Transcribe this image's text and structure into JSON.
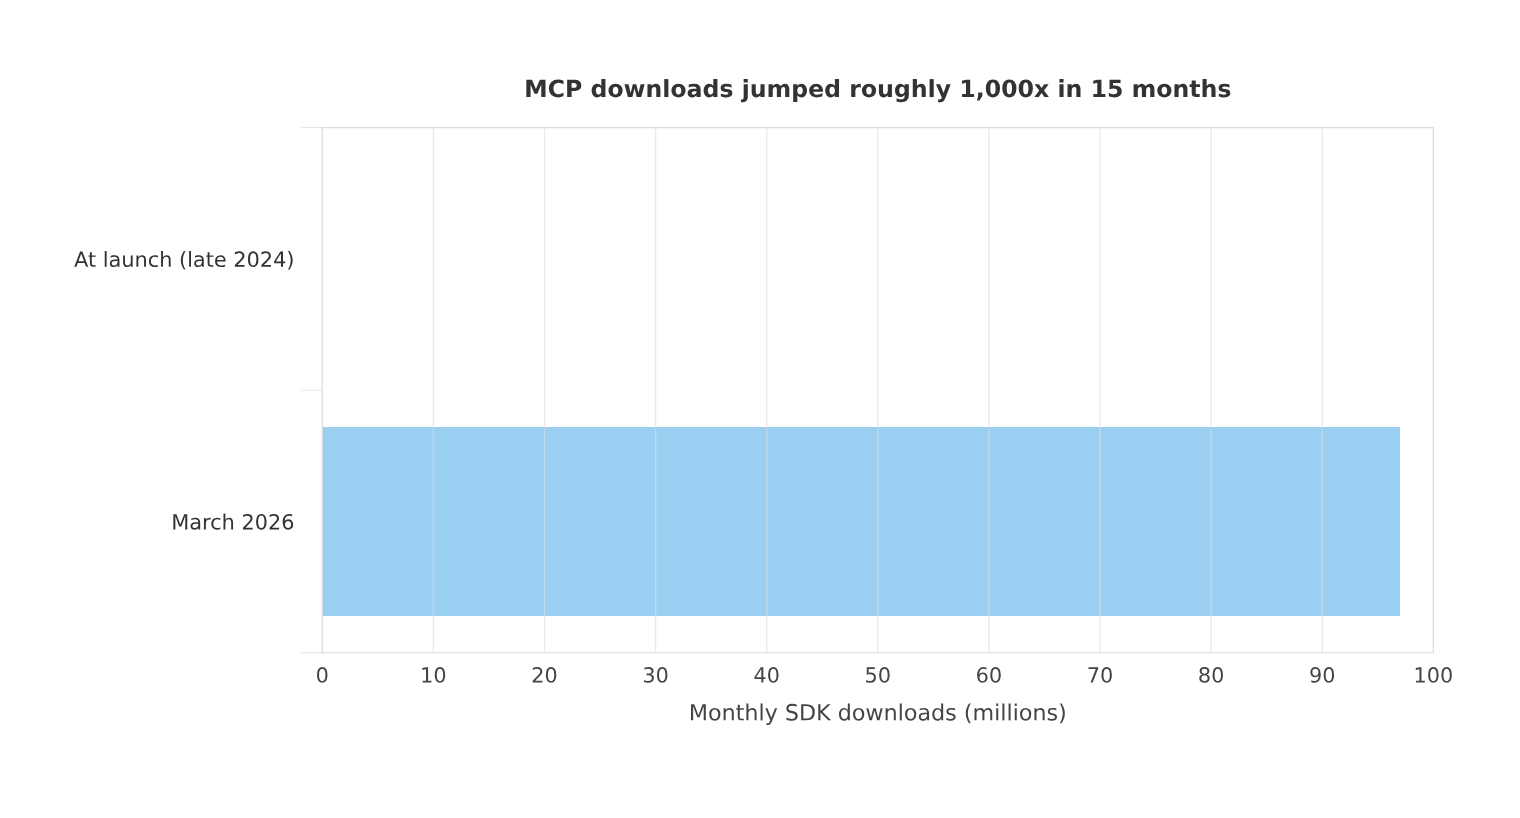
{
  "chart_data": {
    "type": "bar",
    "orientation": "horizontal",
    "title": "MCP downloads jumped roughly 1,000x in 15 months",
    "xlabel": "Monthly SDK downloads (millions)",
    "categories": [
      "At launch (late 2024)",
      "March 2026"
    ],
    "values": [
      null,
      97
    ],
    "color": "#9bcff2",
    "xlim": [
      0,
      100
    ],
    "xticks": [
      0,
      10,
      20,
      30,
      40,
      50,
      60,
      70,
      80,
      90,
      100
    ],
    "grid": "x"
  }
}
